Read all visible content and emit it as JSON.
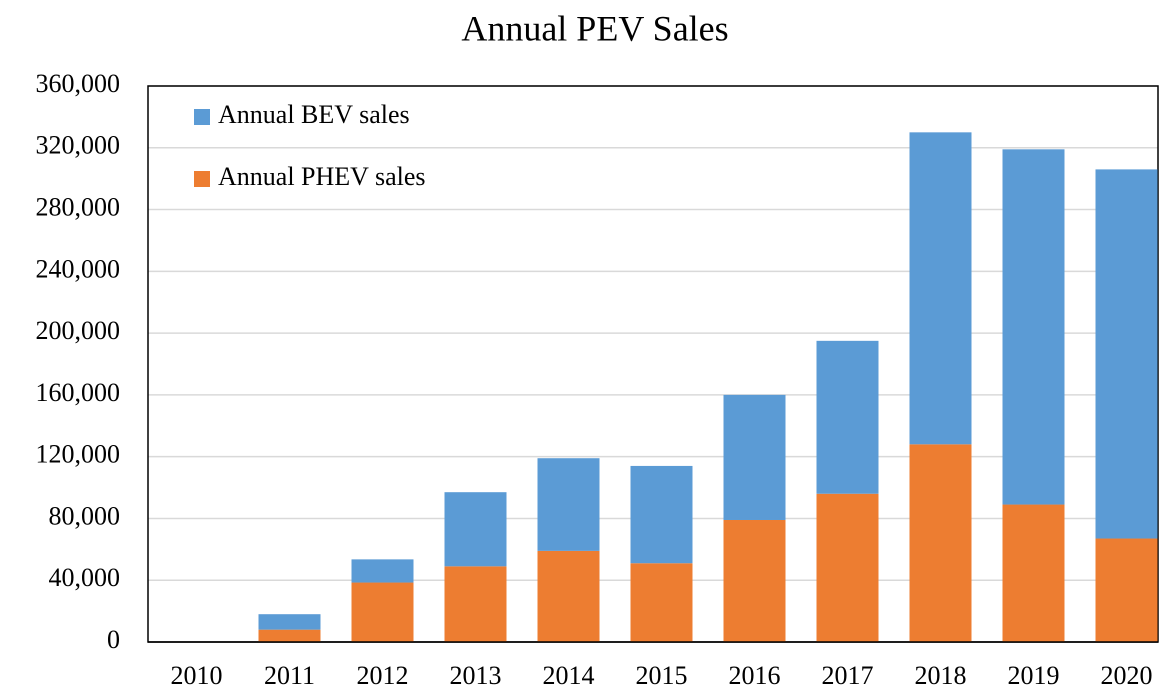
{
  "chart_data": {
    "type": "stacked_bar",
    "title": "Annual PEV Sales",
    "categories": [
      "2010",
      "2011",
      "2012",
      "2013",
      "2014",
      "2015",
      "2016",
      "2017",
      "2018",
      "2019",
      "2020"
    ],
    "series": [
      {
        "name": "Annual PHEV sales",
        "color": "#ed7d31",
        "values": [
          0,
          8000,
          38500,
          49000,
          59000,
          51000,
          79000,
          96000,
          128000,
          89000,
          67000
        ]
      },
      {
        "name": "Annual BEV sales",
        "color": "#5b9bd5",
        "values": [
          0,
          10000,
          15000,
          48000,
          60000,
          63000,
          81000,
          99000,
          202000,
          230000,
          239000
        ]
      }
    ],
    "ylim": [
      0,
      360000
    ],
    "yticks": [
      0,
      {
        "value": 40000,
        "label": "40,000"
      },
      {
        "value": 80000,
        "label": "80,000"
      },
      {
        "value": 120000,
        "label": "120,000"
      },
      {
        "value": 160000,
        "label": "160,000"
      },
      {
        "value": 200000,
        "label": "200,000"
      },
      {
        "value": 240000,
        "label": "240,000"
      },
      {
        "value": 280000,
        "label": "280,000"
      },
      {
        "value": 320000,
        "label": "320,000"
      },
      {
        "value": 360000,
        "label": "360,000"
      }
    ],
    "grid": true,
    "legend": "top-left"
  }
}
